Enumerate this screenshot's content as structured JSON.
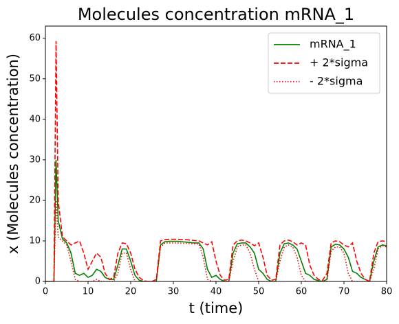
{
  "chart_data": {
    "type": "line",
    "title": "Molecules concentration mRNA_1",
    "xlabel": "t (time)",
    "ylabel": "x (Molecules concentration)",
    "x": [
      0,
      1,
      2,
      2.5,
      3,
      4,
      5,
      6,
      7,
      8,
      9,
      10,
      11,
      12,
      13,
      14,
      15,
      16,
      17,
      18,
      19,
      20,
      21,
      22,
      23,
      24,
      25,
      26,
      27,
      28,
      29,
      30,
      31,
      32,
      33,
      34,
      35,
      36,
      37,
      38,
      39,
      40,
      41,
      42,
      43,
      44,
      45,
      46,
      47,
      48,
      49,
      50,
      51,
      52,
      53,
      54,
      55,
      56,
      57,
      58,
      59,
      60,
      61,
      62,
      63,
      64,
      65,
      66,
      67,
      68,
      69,
      70,
      71,
      72,
      73,
      74,
      75,
      76,
      77,
      78,
      79,
      80
    ],
    "series": [
      {
        "name": "mRNA_1",
        "color": "#008000",
        "dash": "solid",
        "values": [
          0,
          0,
          0,
          30,
          15,
          10.5,
          9.5,
          7,
          2,
          1.5,
          2,
          1,
          1.5,
          3,
          2.5,
          1,
          0.5,
          0.5,
          4,
          8,
          8,
          5,
          1.5,
          0.3,
          0,
          0,
          0,
          0,
          9,
          9.8,
          9.9,
          9.9,
          9.9,
          9.8,
          9.7,
          9.6,
          9.5,
          9.5,
          8,
          3,
          1,
          1.5,
          0.5,
          0,
          0,
          7,
          9.3,
          9.5,
          9.5,
          8.5,
          7,
          3,
          2,
          0.5,
          0,
          0,
          7,
          9.3,
          9.5,
          9,
          8,
          5,
          2,
          1.5,
          0.5,
          0.2,
          0,
          0.5,
          8.5,
          9.2,
          9,
          8,
          6,
          2.5,
          2,
          1,
          0.5,
          0,
          5,
          8.5,
          9,
          8.8
        ]
      },
      {
        "name": "+ 2*sigma",
        "color": "#ff0000",
        "dash": "dashed",
        "values": [
          0,
          0,
          0,
          59.3,
          20,
          11,
          10,
          9,
          9.5,
          10,
          7,
          3,
          5,
          7,
          6,
          2,
          0.5,
          1,
          7,
          9.5,
          9.3,
          7,
          3,
          1,
          0.2,
          0,
          0,
          0.5,
          10,
          10.3,
          10.4,
          10.4,
          10.4,
          10.3,
          10.3,
          10.2,
          10.1,
          10,
          9.5,
          9,
          9.8,
          5,
          1.5,
          0.3,
          0.5,
          9,
          10,
          10.2,
          10,
          9.5,
          8.8,
          9.5,
          6,
          1.5,
          0.3,
          0.5,
          9,
          10,
          10.2,
          9.8,
          9,
          9.5,
          9,
          4,
          1.5,
          0.5,
          0.3,
          2,
          9.5,
          10,
          9.8,
          9,
          8.5,
          9.5,
          5,
          2,
          0.5,
          0,
          7,
          9.8,
          10,
          9.8
        ]
      },
      {
        "name": "- 2*sigma",
        "color": "#ff0000",
        "dash": "dotted",
        "values": [
          0,
          0,
          0,
          20,
          11,
          10,
          9,
          5,
          0.5,
          0,
          0,
          0,
          0,
          0.5,
          0,
          0,
          0,
          0,
          2,
          7,
          7,
          3,
          0,
          0,
          0,
          0,
          0,
          0,
          8.5,
          9.5,
          9.5,
          9.5,
          9.5,
          9.4,
          9.4,
          9.3,
          9.3,
          9.2,
          6,
          0.5,
          0,
          0,
          0,
          0,
          0,
          5,
          8.5,
          9,
          9,
          7,
          3,
          0,
          0,
          0,
          0,
          0,
          5,
          8.5,
          9,
          8.5,
          6,
          1.5,
          0,
          0,
          0,
          0,
          0,
          0,
          7.5,
          8.5,
          8.5,
          7,
          2,
          0,
          0,
          0,
          0,
          0,
          3,
          8,
          8.8,
          8.5
        ]
      }
    ],
    "xlim": [
      0,
      80
    ],
    "xticks": [
      0,
      10,
      20,
      30,
      40,
      50,
      60,
      70,
      80
    ],
    "ylim": [
      0,
      63
    ],
    "yticks": [
      0,
      10,
      20,
      30,
      40,
      50,
      60
    ],
    "grid": false,
    "legend": "upper right"
  }
}
